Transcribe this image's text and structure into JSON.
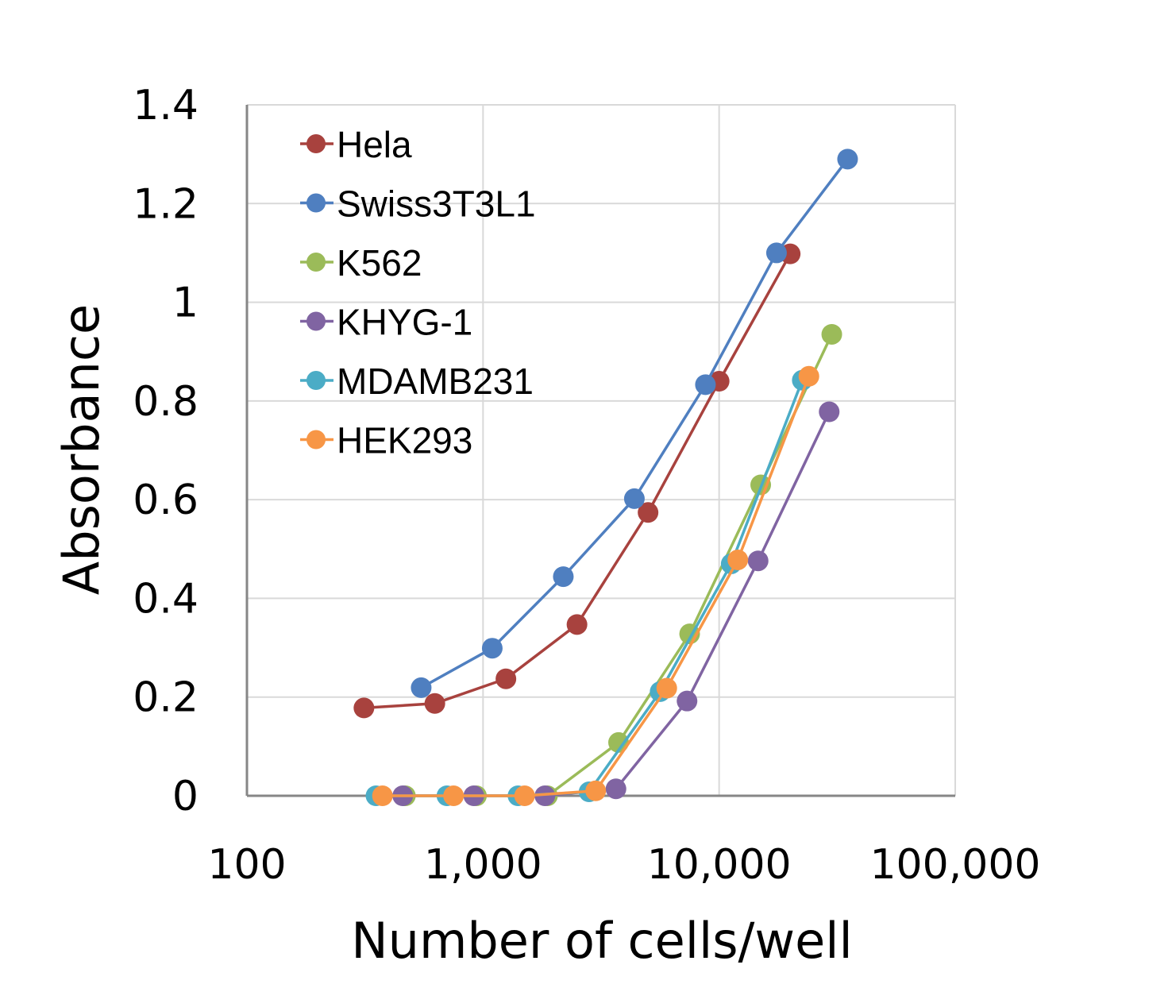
{
  "chart_data": {
    "type": "scatter",
    "xscale": "log",
    "xlim": [
      100,
      100000
    ],
    "ylim": [
      0,
      1.4
    ],
    "grid": true,
    "legend_position": "top-left",
    "xlabel": "Number of cells/well",
    "ylabel": "Absorbance",
    "x_ticks": [
      "100",
      "1,000",
      "10,000",
      "100,000"
    ],
    "y_ticks": [
      "0",
      "0.2",
      "0.4",
      "0.6",
      "0.8",
      "1",
      "1.2",
      "1.4"
    ],
    "series": [
      {
        "name": "Hela",
        "color": "#a8423e",
        "x": [
          313,
          625,
          1250,
          2500,
          5000,
          10000,
          20000
        ],
        "y": [
          0.178,
          0.187,
          0.237,
          0.347,
          0.574,
          0.84,
          1.098
        ]
      },
      {
        "name": "Swiss3T3L1",
        "color": "#4f7fc0",
        "x": [
          547,
          1094,
          2188,
          4375,
          8750,
          17500,
          35000
        ],
        "y": [
          0.219,
          0.299,
          0.444,
          0.602,
          0.833,
          1.1,
          1.29
        ]
      },
      {
        "name": "K562",
        "color": "#9bbb59",
        "x": [
          469,
          938,
          1875,
          3750,
          7500,
          15000,
          30000
        ],
        "y": [
          0.0,
          0.0,
          0.0,
          0.108,
          0.328,
          0.63,
          0.935
        ]
      },
      {
        "name": "KHYG-1",
        "color": "#8064a2",
        "x": [
          457,
          914,
          1828,
          3656,
          7313,
          14625,
          29250
        ],
        "y": [
          0.0,
          0.0,
          0.0,
          0.014,
          0.192,
          0.476,
          0.778
        ]
      },
      {
        "name": "MDAMB231",
        "color": "#4bacc6",
        "x": [
          352,
          703,
          1406,
          2813,
          5625,
          11250,
          22500
        ],
        "y": [
          0.0,
          0.0,
          0.0,
          0.008,
          0.211,
          0.47,
          0.842
        ]
      },
      {
        "name": "HEK293",
        "color": "#f79646",
        "x": [
          375,
          750,
          1500,
          3000,
          6000,
          12000,
          24000
        ],
        "y": [
          0.0,
          0.0,
          0.0,
          0.01,
          0.218,
          0.478,
          0.85
        ]
      }
    ]
  }
}
